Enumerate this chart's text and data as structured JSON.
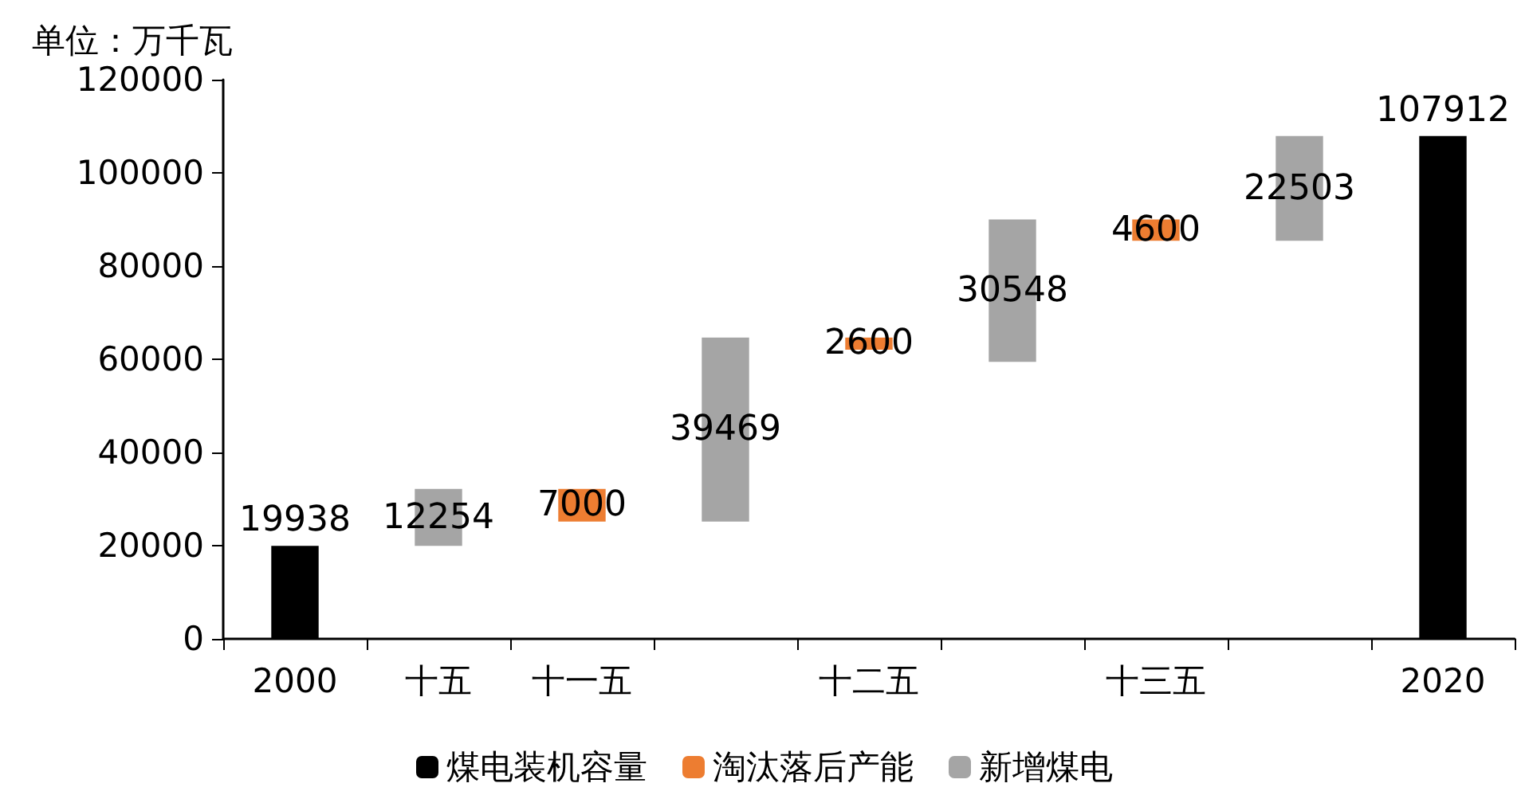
{
  "chart_data": {
    "type": "bar",
    "ylabel": "单位：万千瓦",
    "categories": [
      "2000",
      "十五",
      "十一五",
      null,
      "十二五",
      null,
      "十三五",
      null,
      "2020"
    ],
    "series": [
      {
        "name": "煤电装机容量",
        "color": "#000000",
        "values": [
          19938,
          null,
          null,
          null,
          null,
          null,
          null,
          null,
          107912
        ]
      },
      {
        "name": "淘汰落后产能",
        "color": "#ed7d31",
        "values": [
          null,
          null,
          7000,
          null,
          2600,
          null,
          4600,
          null,
          null
        ],
        "base": [
          null,
          null,
          25192,
          null,
          62061,
          null,
          85409,
          null,
          null
        ]
      },
      {
        "name": "新增煤电",
        "color": "#a5a5a5",
        "values": [
          null,
          12254,
          null,
          39469,
          null,
          30548,
          null,
          22503,
          null
        ],
        "base": [
          null,
          19938,
          null,
          25192,
          null,
          59461,
          null,
          85409,
          null
        ]
      }
    ],
    "ylim": [
      0,
      120000
    ],
    "yticks": [
      0,
      20000,
      40000,
      60000,
      80000,
      100000,
      120000
    ],
    "data_labels": true,
    "grid": false,
    "legend": "bottom"
  }
}
